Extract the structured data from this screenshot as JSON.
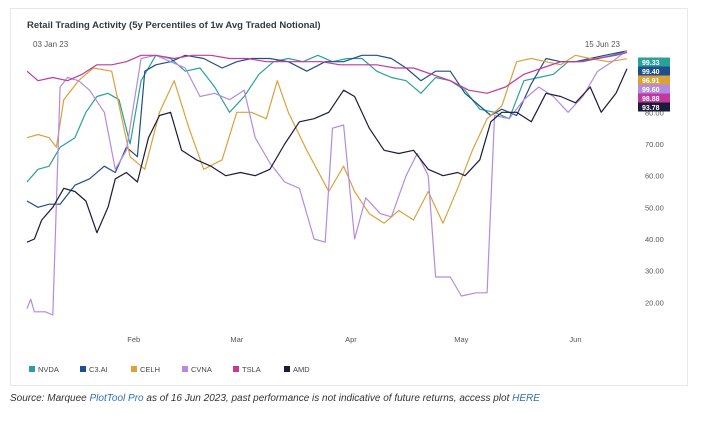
{
  "caption": {
    "source_label": "Source: Marquee",
    "tool_link": "PlotTool Pro",
    "middle_text": "as of 16 Jun 2023, past performance is not indicative of future returns, access plot",
    "here_link": "HERE"
  },
  "chart_data": {
    "type": "line",
    "title": "Retail Trading Activity (5y Percentiles of 1w Avg Traded Notional)",
    "range_start_label": "03 Jan 23",
    "range_end_label": "15 Jun 23",
    "xlabel": "",
    "ylabel": "",
    "x_start": "2023-01-03",
    "x_end": "2023-06-15",
    "x_ticks": [
      {
        "date": "2023-02-01",
        "label": "Feb"
      },
      {
        "date": "2023-03-01",
        "label": "Mar"
      },
      {
        "date": "2023-04-01",
        "label": "Apr"
      },
      {
        "date": "2023-05-01",
        "label": "May"
      },
      {
        "date": "2023-06-01",
        "label": "Jun"
      }
    ],
    "y_ticks": [
      "20.00",
      "30.00",
      "40.00",
      "50.00",
      "60.00",
      "70.00",
      "80.00"
    ],
    "ylim": [
      10,
      100
    ],
    "grid": "none",
    "legend_position": "bottom-left",
    "series": [
      {
        "name": "NVDA",
        "color": "#2aa198",
        "last_label": "99.33",
        "points": [
          [
            "2023-01-03",
            58
          ],
          [
            "2023-01-06",
            62
          ],
          [
            "2023-01-09",
            63
          ],
          [
            "2023-01-12",
            69
          ],
          [
            "2023-01-16",
            72
          ],
          [
            "2023-01-19",
            80
          ],
          [
            "2023-01-22",
            85
          ],
          [
            "2023-01-25",
            86
          ],
          [
            "2023-01-28",
            84
          ],
          [
            "2023-01-31",
            70
          ],
          [
            "2023-02-03",
            90
          ],
          [
            "2023-02-07",
            98
          ],
          [
            "2023-02-11",
            97
          ],
          [
            "2023-02-15",
            93
          ],
          [
            "2023-02-19",
            94
          ],
          [
            "2023-02-23",
            88
          ],
          [
            "2023-02-27",
            80
          ],
          [
            "2023-03-03",
            85
          ],
          [
            "2023-03-07",
            92
          ],
          [
            "2023-03-11",
            96
          ],
          [
            "2023-03-15",
            97
          ],
          [
            "2023-03-19",
            96
          ],
          [
            "2023-03-23",
            98
          ],
          [
            "2023-03-27",
            96
          ],
          [
            "2023-03-31",
            97
          ],
          [
            "2023-04-04",
            97
          ],
          [
            "2023-04-08",
            93
          ],
          [
            "2023-04-12",
            91
          ],
          [
            "2023-04-16",
            90
          ],
          [
            "2023-04-20",
            86
          ],
          [
            "2023-04-24",
            91
          ],
          [
            "2023-04-28",
            90
          ],
          [
            "2023-05-02",
            87
          ],
          [
            "2023-05-06",
            81
          ],
          [
            "2023-05-10",
            80
          ],
          [
            "2023-05-14",
            78
          ],
          [
            "2023-05-18",
            90
          ],
          [
            "2023-05-22",
            91
          ],
          [
            "2023-05-26",
            92
          ],
          [
            "2023-05-30",
            96
          ],
          [
            "2023-06-03",
            96
          ],
          [
            "2023-06-07",
            97
          ],
          [
            "2023-06-11",
            98
          ],
          [
            "2023-06-15",
            99.33
          ]
        ]
      },
      {
        "name": "C3.AI",
        "color": "#1f4e8c",
        "last_label": "99.40",
        "points": [
          [
            "2023-01-03",
            52
          ],
          [
            "2023-01-06",
            50
          ],
          [
            "2023-01-09",
            51
          ],
          [
            "2023-01-12",
            51
          ],
          [
            "2023-01-16",
            57
          ],
          [
            "2023-01-20",
            59
          ],
          [
            "2023-01-24",
            63
          ],
          [
            "2023-01-27",
            61
          ],
          [
            "2023-01-30",
            69
          ],
          [
            "2023-02-02",
            66
          ],
          [
            "2023-02-04",
            93
          ],
          [
            "2023-02-07",
            95
          ],
          [
            "2023-02-11",
            96
          ],
          [
            "2023-02-15",
            98
          ],
          [
            "2023-02-20",
            97
          ],
          [
            "2023-02-25",
            94
          ],
          [
            "2023-03-01",
            96
          ],
          [
            "2023-03-05",
            97
          ],
          [
            "2023-03-10",
            97
          ],
          [
            "2023-03-15",
            96
          ],
          [
            "2023-03-20",
            93
          ],
          [
            "2023-03-25",
            96
          ],
          [
            "2023-03-30",
            96
          ],
          [
            "2023-04-04",
            98
          ],
          [
            "2023-04-08",
            98
          ],
          [
            "2023-04-12",
            97
          ],
          [
            "2023-04-16",
            94
          ],
          [
            "2023-04-20",
            90
          ],
          [
            "2023-04-24",
            93
          ],
          [
            "2023-04-28",
            93
          ],
          [
            "2023-05-02",
            86
          ],
          [
            "2023-05-06",
            82
          ],
          [
            "2023-05-09",
            79
          ],
          [
            "2023-05-12",
            81
          ],
          [
            "2023-05-16",
            79
          ],
          [
            "2023-05-20",
            89
          ],
          [
            "2023-05-24",
            97
          ],
          [
            "2023-05-28",
            96
          ],
          [
            "2023-06-01",
            96
          ],
          [
            "2023-06-05",
            97
          ],
          [
            "2023-06-09",
            98
          ],
          [
            "2023-06-15",
            99.4
          ]
        ]
      },
      {
        "name": "CELH",
        "color": "#d9a23b",
        "last_label": "96.91",
        "points": [
          [
            "2023-01-03",
            72
          ],
          [
            "2023-01-06",
            73
          ],
          [
            "2023-01-09",
            72
          ],
          [
            "2023-01-11",
            69
          ],
          [
            "2023-01-13",
            84
          ],
          [
            "2023-01-17",
            90
          ],
          [
            "2023-01-21",
            94
          ],
          [
            "2023-01-26",
            93
          ],
          [
            "2023-01-31",
            66
          ],
          [
            "2023-02-04",
            62
          ],
          [
            "2023-02-08",
            80
          ],
          [
            "2023-02-12",
            90
          ],
          [
            "2023-02-16",
            75
          ],
          [
            "2023-02-20",
            62
          ],
          [
            "2023-02-25",
            65
          ],
          [
            "2023-03-01",
            80
          ],
          [
            "2023-03-05",
            80
          ],
          [
            "2023-03-09",
            78
          ],
          [
            "2023-03-12",
            90
          ],
          [
            "2023-03-15",
            80
          ],
          [
            "2023-03-20",
            68
          ],
          [
            "2023-03-26",
            55
          ],
          [
            "2023-03-30",
            63
          ],
          [
            "2023-04-02",
            55
          ],
          [
            "2023-04-06",
            48
          ],
          [
            "2023-04-10",
            45
          ],
          [
            "2023-04-14",
            49
          ],
          [
            "2023-04-18",
            46
          ],
          [
            "2023-04-22",
            55
          ],
          [
            "2023-04-26",
            45
          ],
          [
            "2023-04-30",
            56
          ],
          [
            "2023-05-04",
            68
          ],
          [
            "2023-05-08",
            78
          ],
          [
            "2023-05-12",
            82
          ],
          [
            "2023-05-16",
            96
          ],
          [
            "2023-05-20",
            97
          ],
          [
            "2023-05-24",
            96
          ],
          [
            "2023-05-28",
            95
          ],
          [
            "2023-06-01",
            98
          ],
          [
            "2023-06-05",
            97
          ],
          [
            "2023-06-10",
            96
          ],
          [
            "2023-06-15",
            96.91
          ]
        ]
      },
      {
        "name": "CVNA",
        "color": "#b38be0",
        "last_label": "99.60",
        "points": [
          [
            "2023-01-03",
            18
          ],
          [
            "2023-01-04",
            21
          ],
          [
            "2023-01-05",
            17
          ],
          [
            "2023-01-08",
            17
          ],
          [
            "2023-01-10",
            16
          ],
          [
            "2023-01-12",
            88
          ],
          [
            "2023-01-14",
            91
          ],
          [
            "2023-01-17",
            90
          ],
          [
            "2023-01-20",
            87
          ],
          [
            "2023-01-24",
            80
          ],
          [
            "2023-01-27",
            62
          ],
          [
            "2023-01-30",
            68
          ],
          [
            "2023-02-03",
            97
          ],
          [
            "2023-02-07",
            98
          ],
          [
            "2023-02-11",
            96
          ],
          [
            "2023-02-15",
            94
          ],
          [
            "2023-02-19",
            85
          ],
          [
            "2023-02-23",
            86
          ],
          [
            "2023-02-27",
            84
          ],
          [
            "2023-03-03",
            87
          ],
          [
            "2023-03-06",
            72
          ],
          [
            "2023-03-10",
            64
          ],
          [
            "2023-03-14",
            58
          ],
          [
            "2023-03-18",
            56
          ],
          [
            "2023-03-22",
            40
          ],
          [
            "2023-03-25",
            39
          ],
          [
            "2023-03-27",
            75
          ],
          [
            "2023-03-30",
            76
          ],
          [
            "2023-04-02",
            40
          ],
          [
            "2023-04-05",
            53
          ],
          [
            "2023-04-09",
            48
          ],
          [
            "2023-04-12",
            47
          ],
          [
            "2023-04-16",
            60
          ],
          [
            "2023-04-19",
            67
          ],
          [
            "2023-04-22",
            60
          ],
          [
            "2023-04-24",
            28
          ],
          [
            "2023-04-28",
            28
          ],
          [
            "2023-05-01",
            22
          ],
          [
            "2023-05-05",
            23
          ],
          [
            "2023-05-08",
            23
          ],
          [
            "2023-05-10",
            79
          ],
          [
            "2023-05-14",
            78
          ],
          [
            "2023-05-18",
            84
          ],
          [
            "2023-05-22",
            88
          ],
          [
            "2023-05-26",
            85
          ],
          [
            "2023-05-30",
            80
          ],
          [
            "2023-06-03",
            85
          ],
          [
            "2023-06-07",
            93
          ],
          [
            "2023-06-11",
            96
          ],
          [
            "2023-06-15",
            99.6
          ]
        ]
      },
      {
        "name": "TSLA",
        "color": "#c2399b",
        "last_label": "98.88",
        "points": [
          [
            "2023-01-03",
            93
          ],
          [
            "2023-01-06",
            90
          ],
          [
            "2023-01-10",
            91
          ],
          [
            "2023-01-14",
            90
          ],
          [
            "2023-01-18",
            92
          ],
          [
            "2023-01-22",
            95
          ],
          [
            "2023-01-26",
            95
          ],
          [
            "2023-01-30",
            96
          ],
          [
            "2023-02-03",
            98
          ],
          [
            "2023-02-07",
            98
          ],
          [
            "2023-02-12",
            97
          ],
          [
            "2023-02-17",
            98
          ],
          [
            "2023-02-22",
            98
          ],
          [
            "2023-02-27",
            97
          ],
          [
            "2023-03-04",
            97
          ],
          [
            "2023-03-09",
            96
          ],
          [
            "2023-03-14",
            96
          ],
          [
            "2023-03-19",
            96
          ],
          [
            "2023-03-24",
            96
          ],
          [
            "2023-03-29",
            95
          ],
          [
            "2023-04-03",
            95
          ],
          [
            "2023-04-08",
            95
          ],
          [
            "2023-04-13",
            94
          ],
          [
            "2023-04-18",
            94
          ],
          [
            "2023-04-23",
            92
          ],
          [
            "2023-04-28",
            90
          ],
          [
            "2023-05-03",
            87
          ],
          [
            "2023-05-08",
            86
          ],
          [
            "2023-05-13",
            88
          ],
          [
            "2023-05-18",
            92
          ],
          [
            "2023-05-23",
            94
          ],
          [
            "2023-05-28",
            96
          ],
          [
            "2023-06-02",
            96
          ],
          [
            "2023-06-07",
            97
          ],
          [
            "2023-06-12",
            98
          ],
          [
            "2023-06-15",
            98.88
          ]
        ]
      },
      {
        "name": "AMD",
        "color": "#1b1b3a",
        "last_label": "93.78",
        "points": [
          [
            "2023-01-03",
            39
          ],
          [
            "2023-01-05",
            40
          ],
          [
            "2023-01-07",
            46
          ],
          [
            "2023-01-10",
            50
          ],
          [
            "2023-01-13",
            56
          ],
          [
            "2023-01-16",
            55
          ],
          [
            "2023-01-19",
            52
          ],
          [
            "2023-01-22",
            42
          ],
          [
            "2023-01-25",
            50
          ],
          [
            "2023-01-27",
            59
          ],
          [
            "2023-01-30",
            61
          ],
          [
            "2023-02-02",
            58
          ],
          [
            "2023-02-05",
            72
          ],
          [
            "2023-02-08",
            79
          ],
          [
            "2023-02-11",
            80
          ],
          [
            "2023-02-14",
            68
          ],
          [
            "2023-02-18",
            65
          ],
          [
            "2023-02-22",
            63
          ],
          [
            "2023-02-26",
            60
          ],
          [
            "2023-03-02",
            61
          ],
          [
            "2023-03-06",
            60
          ],
          [
            "2023-03-10",
            62
          ],
          [
            "2023-03-14",
            70
          ],
          [
            "2023-03-18",
            77
          ],
          [
            "2023-03-22",
            78
          ],
          [
            "2023-03-26",
            80
          ],
          [
            "2023-03-30",
            87
          ],
          [
            "2023-04-02",
            85
          ],
          [
            "2023-04-06",
            75
          ],
          [
            "2023-04-10",
            68
          ],
          [
            "2023-04-14",
            67
          ],
          [
            "2023-04-18",
            68
          ],
          [
            "2023-04-22",
            62
          ],
          [
            "2023-04-26",
            60
          ],
          [
            "2023-04-30",
            61
          ],
          [
            "2023-05-02",
            60
          ],
          [
            "2023-05-06",
            65
          ],
          [
            "2023-05-09",
            77
          ],
          [
            "2023-05-12",
            80
          ],
          [
            "2023-05-16",
            80
          ],
          [
            "2023-05-20",
            77
          ],
          [
            "2023-05-24",
            86
          ],
          [
            "2023-05-28",
            85
          ],
          [
            "2023-06-01",
            83
          ],
          [
            "2023-06-05",
            88
          ],
          [
            "2023-06-08",
            80
          ],
          [
            "2023-06-12",
            86
          ],
          [
            "2023-06-15",
            93.78
          ]
        ]
      }
    ]
  }
}
